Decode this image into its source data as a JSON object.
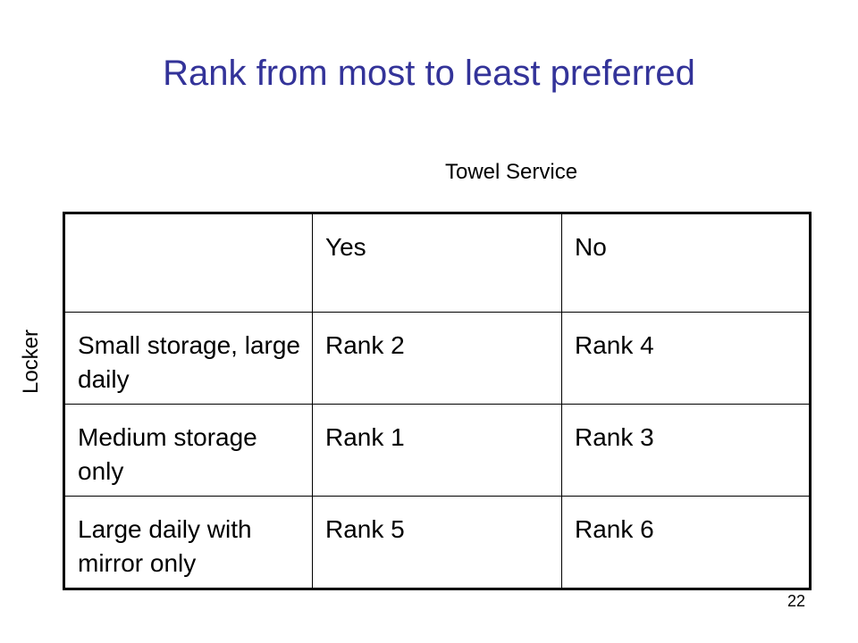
{
  "slide": {
    "title": "Rank from most to least preferred",
    "column_group_label": "Towel Service",
    "row_group_label": "Locker",
    "page_number": "22"
  },
  "table": {
    "header": [
      "",
      "Yes",
      "No"
    ],
    "rows": [
      {
        "label": "Small storage, large daily",
        "cells": [
          "Rank 2",
          "Rank 4"
        ]
      },
      {
        "label": "Medium storage only",
        "cells": [
          "Rank 1",
          "Rank 3"
        ]
      },
      {
        "label": "Large daily with mirror only",
        "cells": [
          "Rank 5",
          "Rank 6"
        ]
      }
    ]
  },
  "colors": {
    "title": "#333399",
    "text": "#000000",
    "border": "#000000",
    "background": "#ffffff"
  }
}
